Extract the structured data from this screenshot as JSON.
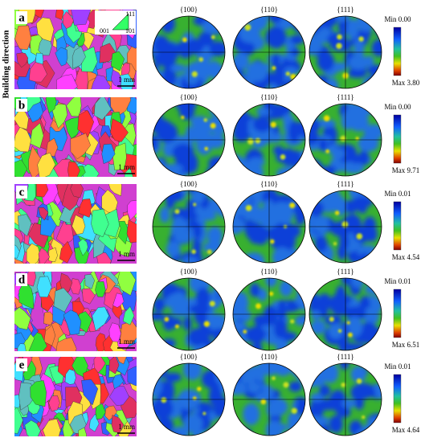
{
  "side_label": "Building direction",
  "ipf_key": [
    "001",
    "101",
    "111"
  ],
  "rows": [
    {
      "label": "a",
      "scale_bar": "1 mm",
      "pole_figures": [
        "{100}",
        "{110}",
        "{111}"
      ],
      "colorbar": {
        "min": "Min 0.00",
        "max": "Max 3.80"
      }
    },
    {
      "label": "b",
      "scale_bar": "1 mm",
      "pole_figures": [
        "{100}",
        "{110}",
        "{111}"
      ],
      "colorbar": {
        "min": "Min 0.00",
        "max": "Max 9.71"
      }
    },
    {
      "label": "c",
      "scale_bar": "1 mm",
      "pole_figures": [
        "{100}",
        "{110}",
        "{111}"
      ],
      "colorbar": {
        "min": "Min 0.01",
        "max": "Max 4.54"
      }
    },
    {
      "label": "d",
      "scale_bar": "1 mm",
      "pole_figures": [
        "{100}",
        "{110}",
        "{111}"
      ],
      "colorbar": {
        "min": "Min 0.01",
        "max": "Max 6.51"
      }
    },
    {
      "label": "e",
      "scale_bar": "1 mm",
      "pole_figures": [
        "{100}",
        "{110}",
        "{111}"
      ],
      "colorbar": {
        "min": "Min 0.01",
        "max": "Max 4.64"
      }
    }
  ]
}
